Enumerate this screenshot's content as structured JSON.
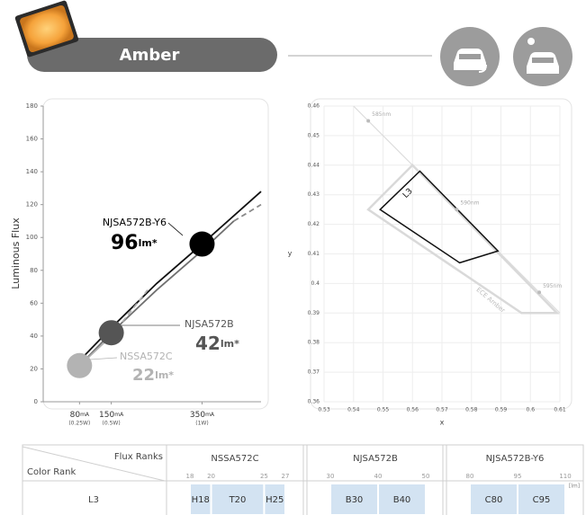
{
  "header": {
    "title": "Amber"
  },
  "flux_chart": {
    "type": "line",
    "ylabel": "Luminous Flux",
    "xlim": [
      0,
      480
    ],
    "ylim": [
      0,
      180
    ],
    "yticks": [
      0,
      20,
      40,
      60,
      80,
      100,
      120,
      140,
      160,
      180
    ],
    "xticks": [
      {
        "value": 80,
        "label": "80",
        "unit": "mA",
        "note": "(0.25W)"
      },
      {
        "value": 150,
        "label": "150",
        "unit": "mA",
        "note": "(0.5W)"
      },
      {
        "value": 350,
        "label": "350",
        "unit": "mA",
        "note": "(1W)"
      }
    ],
    "lines": [
      {
        "color": "#111111",
        "style": "solid",
        "x": [
          80,
          150,
          250,
          350,
          480
        ],
        "values": [
          25,
          45,
          72,
          96,
          128
        ]
      },
      {
        "color": "#707070",
        "style": "solid",
        "x": [
          80,
          150,
          250,
          350,
          420
        ],
        "values": [
          22,
          42,
          68,
          92,
          110
        ]
      },
      {
        "color": "#8a8a8a",
        "style": "dashed",
        "x": [
          420,
          480
        ],
        "values": [
          110,
          120
        ]
      },
      {
        "color": "#b0b0b0",
        "style": "solid",
        "x": [
          80,
          150
        ],
        "values": [
          22,
          40
        ]
      },
      {
        "color": "#b0b0b0",
        "style": "dashed",
        "x": [
          150,
          230
        ],
        "values": [
          40,
          68
        ]
      }
    ],
    "points": [
      {
        "name": "NJSA572B-Y6",
        "x": 350,
        "value": 96,
        "unit": "lm*",
        "color": "#000000"
      },
      {
        "name": "NJSA572B",
        "x": 150,
        "value": 42,
        "unit": "lm*",
        "color": "#555555"
      },
      {
        "name": "NSSA572C",
        "x": 80,
        "value": 22,
        "unit": "lm*",
        "color": "#b3b3b3"
      }
    ]
  },
  "chromaticity_chart": {
    "type": "scatter",
    "xlabel": "x",
    "ylabel": "y",
    "xlim": [
      0.53,
      0.61
    ],
    "ylim": [
      0.36,
      0.46
    ],
    "xticks": [
      0.53,
      0.54,
      0.55,
      0.56,
      0.57,
      0.58,
      0.59,
      0.6,
      0.61
    ],
    "yticks": [
      0.36,
      0.37,
      0.38,
      0.39,
      0.4,
      0.41,
      0.42,
      0.43,
      0.44,
      0.45,
      0.46
    ],
    "locus": {
      "color": "#dddddd",
      "x": [
        0.54,
        0.61
      ],
      "values": [
        0.46,
        0.39
      ]
    },
    "wavelengths": [
      {
        "label": "585nm",
        "x": 0.545,
        "value": 0.455
      },
      {
        "label": "590nm",
        "x": 0.575,
        "value": 0.425
      },
      {
        "label": "595nm",
        "x": 0.603,
        "value": 0.397
      }
    ],
    "regions": [
      {
        "label": "ECE Amber",
        "color": "#d9d9d9",
        "x": [
          0.545,
          0.56,
          0.609,
          0.597
        ],
        "values": [
          0.425,
          0.44,
          0.39,
          0.39
        ]
      },
      {
        "label": "L3",
        "color": "#111111",
        "x": [
          0.549,
          0.5625,
          0.589,
          0.576
        ],
        "values": [
          0.425,
          0.438,
          0.411,
          0.407
        ]
      }
    ]
  },
  "table": {
    "corner_top": "Flux Ranks",
    "corner_bottom": "Color Rank",
    "unit": "[lm]",
    "rows": [
      {
        "label": "L3"
      }
    ],
    "groups": [
      {
        "name": "NSSA572C",
        "scale": [
          18,
          20,
          25,
          27
        ],
        "ranks": [
          {
            "label": "H18",
            "min": 18,
            "max": 20
          },
          {
            "label": "T20",
            "min": 20,
            "max": 25
          },
          {
            "label": "H25",
            "min": 25,
            "max": 27
          }
        ]
      },
      {
        "name": "NJSA572B",
        "scale": [
          30,
          40,
          50
        ],
        "ranks": [
          {
            "label": "B30",
            "min": 30,
            "max": 40
          },
          {
            "label": "B40",
            "min": 40,
            "max": 50
          }
        ]
      },
      {
        "name": "NJSA572B-Y6",
        "scale": [
          80,
          95,
          110
        ],
        "ranks": [
          {
            "label": "C80",
            "min": 80,
            "max": 95
          },
          {
            "label": "C95",
            "min": 95,
            "max": 110
          }
        ]
      }
    ]
  }
}
